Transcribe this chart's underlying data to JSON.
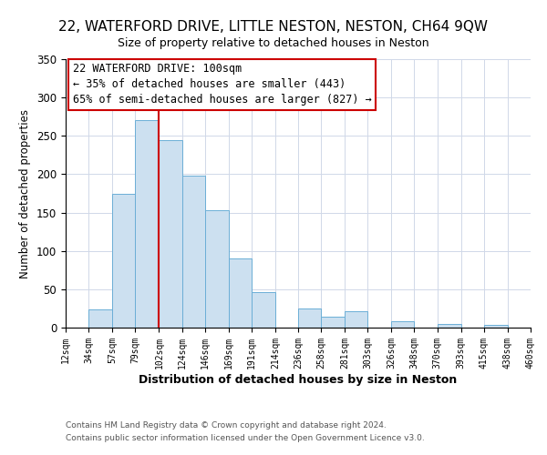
{
  "title": "22, WATERFORD DRIVE, LITTLE NESTON, NESTON, CH64 9QW",
  "subtitle": "Size of property relative to detached houses in Neston",
  "xlabel": "Distribution of detached houses by size in Neston",
  "ylabel": "Number of detached properties",
  "bin_edges": [
    12,
    34,
    57,
    79,
    102,
    124,
    146,
    169,
    191,
    214,
    236,
    258,
    281,
    303,
    326,
    348,
    370,
    393,
    415,
    438,
    460
  ],
  "bar_heights": [
    0,
    24,
    175,
    270,
    245,
    198,
    153,
    90,
    46,
    0,
    25,
    14,
    21,
    0,
    8,
    0,
    5,
    0,
    4,
    0
  ],
  "bar_color": "#cce0f0",
  "bar_edge_color": "#6baed6",
  "vline_x": 102,
  "vline_color": "#cc0000",
  "ylim": [
    0,
    350
  ],
  "yticks": [
    0,
    50,
    100,
    150,
    200,
    250,
    300,
    350
  ],
  "annotation_title": "22 WATERFORD DRIVE: 100sqm",
  "annotation_line1": "← 35% of detached houses are smaller (443)",
  "annotation_line2": "65% of semi-detached houses are larger (827) →",
  "annotation_box_color": "#ffffff",
  "annotation_box_edge": "#cc0000",
  "footer1": "Contains HM Land Registry data © Crown copyright and database right 2024.",
  "footer2": "Contains public sector information licensed under the Open Government Licence v3.0.",
  "tick_labels": [
    "12sqm",
    "34sqm",
    "57sqm",
    "79sqm",
    "102sqm",
    "124sqm",
    "146sqm",
    "169sqm",
    "191sqm",
    "214sqm",
    "236sqm",
    "258sqm",
    "281sqm",
    "303sqm",
    "326sqm",
    "348sqm",
    "370sqm",
    "393sqm",
    "415sqm",
    "438sqm",
    "460sqm"
  ],
  "background_color": "#ffffff",
  "grid_color": "#d0d8e8",
  "title_fontsize": 11,
  "subtitle_fontsize": 9,
  "ylabel_fontsize": 8.5,
  "xlabel_fontsize": 9,
  "annotation_fontsize": 8.5,
  "ytick_fontsize": 8.5,
  "xtick_fontsize": 7
}
